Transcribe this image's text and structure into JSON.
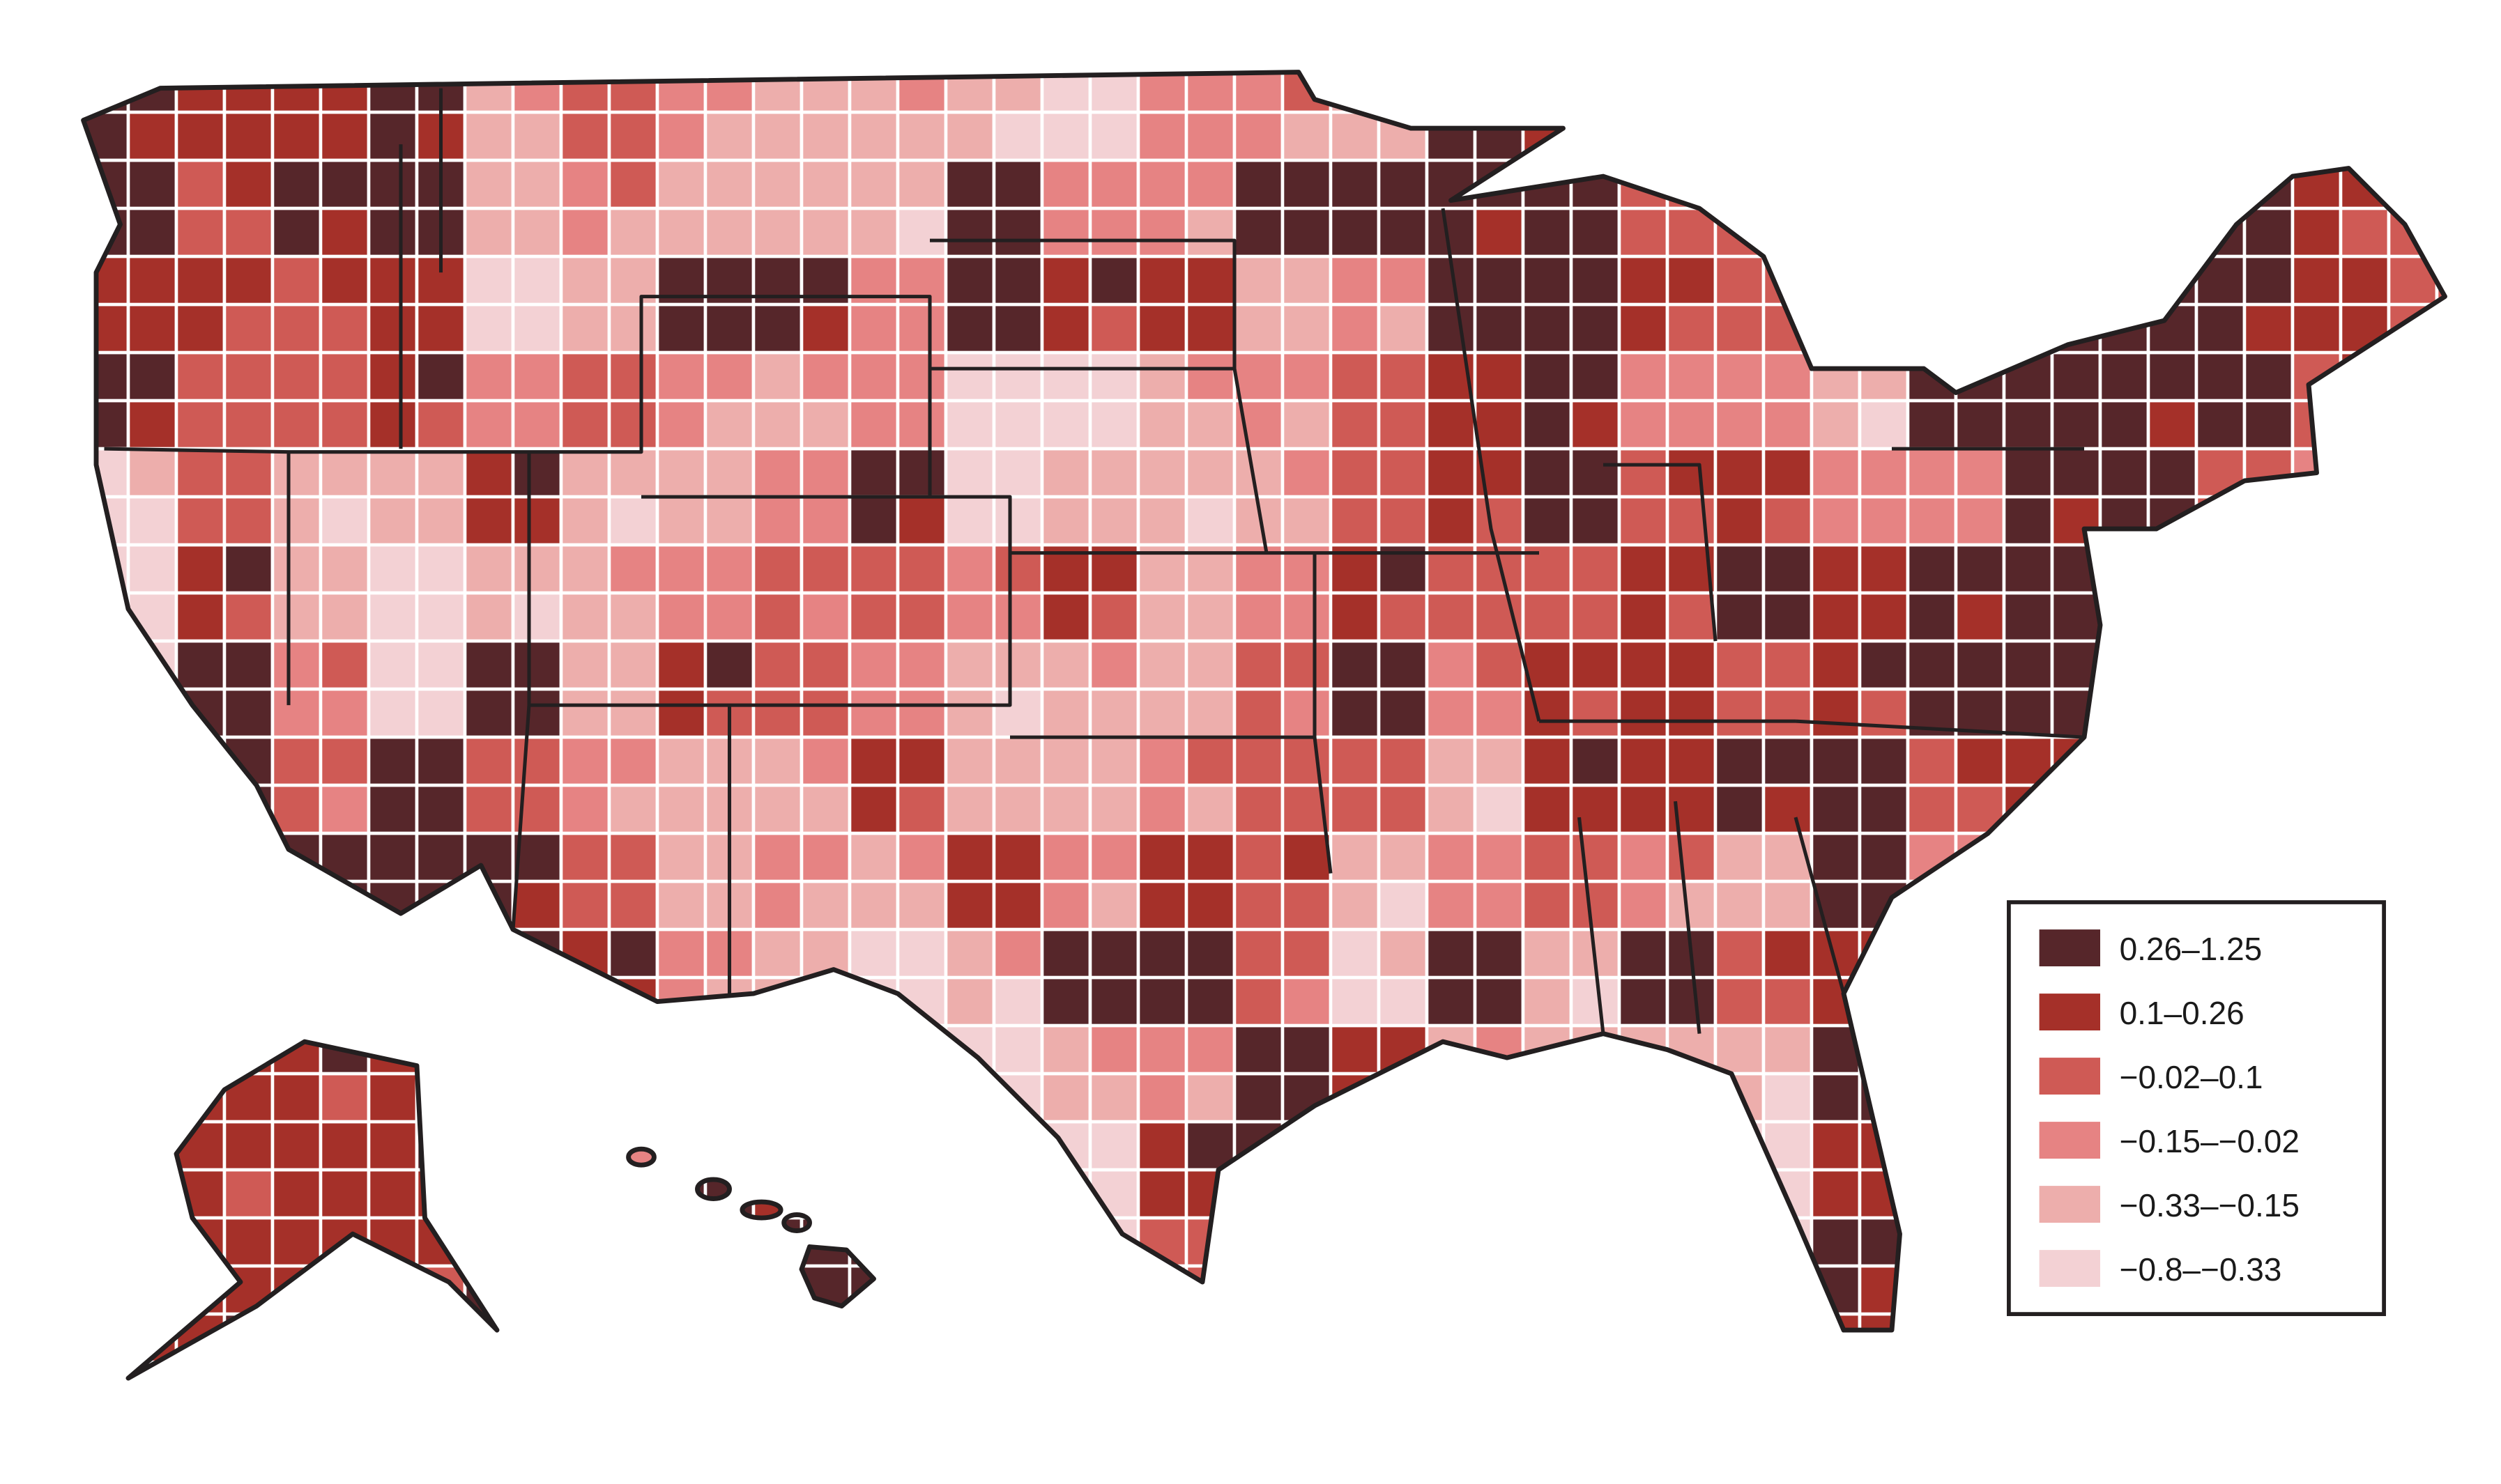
{
  "map_data": {
    "type": "choropleth",
    "region": "United States (counties)",
    "border_color": "#231f20",
    "boundary_color": "#ffffff",
    "classes": [
      {
        "label": "0.26–1.25",
        "color": "#56262a"
      },
      {
        "label": "0.1–0.26",
        "color": "#a53029"
      },
      {
        "label": "−0.02–0.1",
        "color": "#cf5a55"
      },
      {
        "label": "−0.15–−0.02",
        "color": "#e68383"
      },
      {
        "label": "−0.33–−0.15",
        "color": "#edaeac"
      },
      {
        "label": "−0.8–−0.33",
        "color": "#f3d1d4"
      }
    ],
    "region_classes": [
      "0110423444533401222222232",
      "0200434440330000222210012",
      "1121540030114300122100012",
      "0221323435543210334000022",
      "5244144305444210213300233",
      "5145443223143122101000000",
      "5035041234442031121001111",
      "0020234414432241100211111",
      "0100024341312432340333333",
      "0000013454002504021333333",
      "1111155555430144440555555",
      "1111130105510255551555555",
      "1111055005522555550555555",
      "1111155555555555551555555"
    ],
    "legend": {
      "placement": "bottom-right"
    }
  }
}
